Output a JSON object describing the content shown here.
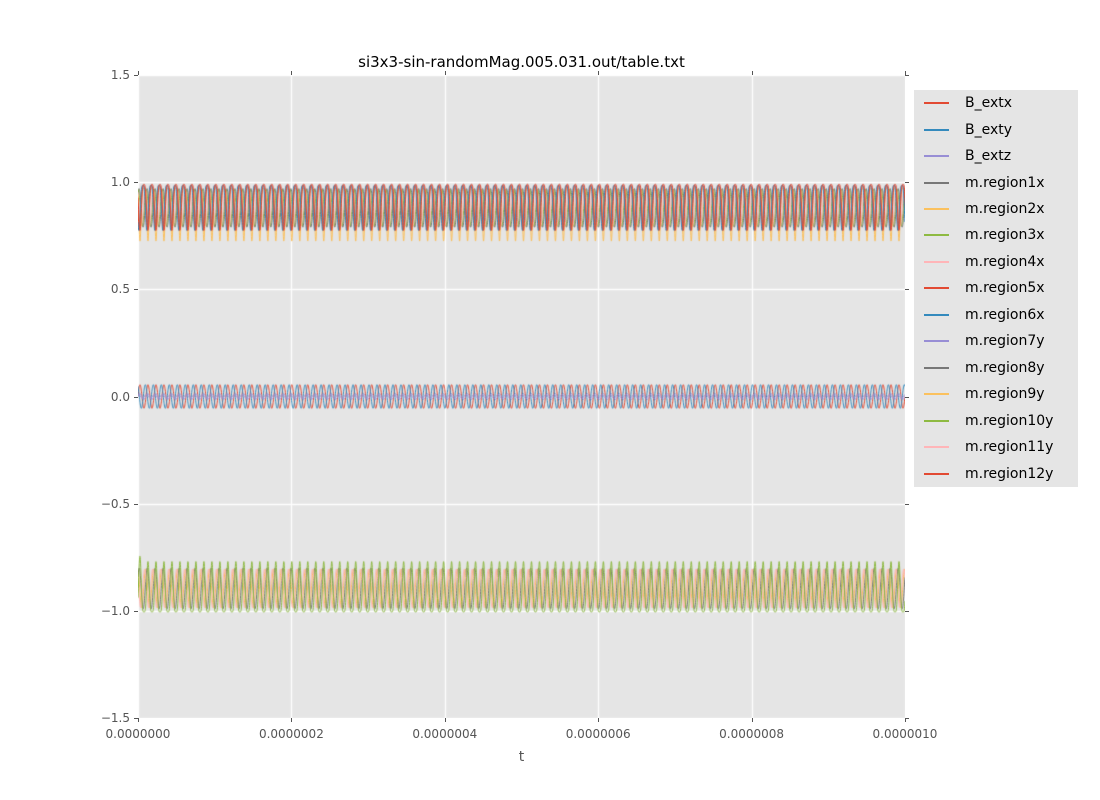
{
  "chart_data": {
    "type": "line",
    "title": "si3x3-sin-randomMag.005.031.out/table.txt",
    "xlabel": "t",
    "ylabel": "",
    "xlim": [
      0.0,
      1e-06
    ],
    "ylim": [
      -1.5,
      1.5
    ],
    "xticklabels": [
      "0.0000000",
      "0.0000002",
      "0.0000004",
      "0.0000006",
      "0.0000008",
      "0.0000010"
    ],
    "yticklabels": [
      "1.5",
      "1.0",
      "0.5",
      "0.0",
      "−0.5",
      "−1.0",
      "−1.5"
    ],
    "grid": true,
    "grid_color": "#ffffff",
    "background": "#e5e5e5",
    "tick_color": "#555555",
    "legend_position": "right",
    "oscillation_cycles_across_domain": 96,
    "bands_note": "Three dense high-frequency oscillation bands: magnetization x-components around +0.88, external field components around 0.0, magnetization y-components around -0.89",
    "series": [
      {
        "name": "B_extx",
        "color": "#E24A33",
        "band": "middle",
        "shape": "sine",
        "center": 0.0,
        "amp": 0.055,
        "phase": 0.0,
        "z": 9
      },
      {
        "name": "B_exty",
        "color": "#348ABD",
        "band": "middle",
        "shape": "sine",
        "center": 0.0,
        "amp": 0.055,
        "phase": 2.1,
        "z": 10
      },
      {
        "name": "B_extz",
        "color": "#988ED5",
        "band": "middle",
        "shape": "sine",
        "center": 0.0,
        "amp": 0.013,
        "phase": 0.0,
        "z": 11
      },
      {
        "name": "m.region1x",
        "color": "#777777",
        "band": "upper",
        "shape": "sine",
        "center": 0.88,
        "amp": 0.09,
        "phase": 0.7,
        "z": 1
      },
      {
        "name": "m.region2x",
        "color": "#FBC15E",
        "band": "upper",
        "shape": "spike_down",
        "top": 0.97,
        "depth": 0.245,
        "power": 3.0,
        "phase": 0.0,
        "z": 4
      },
      {
        "name": "m.region3x",
        "color": "#8EBA42",
        "band": "upper",
        "shape": "sine",
        "center": 0.88,
        "amp": 0.085,
        "phase": 1.4,
        "z": 2
      },
      {
        "name": "m.region4x",
        "color": "#FFB5B8",
        "band": "upper",
        "shape": "sine",
        "center": 0.88,
        "amp": 0.085,
        "phase": 2.1,
        "z": 3
      },
      {
        "name": "m.region5x",
        "color": "#E24A33",
        "band": "upper",
        "shape": "spike_down",
        "top": 0.99,
        "depth": 0.215,
        "power": 1.8,
        "phase": 0.0,
        "z": 15
      },
      {
        "name": "m.region6x",
        "color": "#348ABD",
        "band": "upper",
        "shape": "spike_down",
        "top": 0.985,
        "depth": 0.21,
        "power": 1.8,
        "phase": 0.9,
        "z": 14
      },
      {
        "name": "m.region7y",
        "color": "#988ED5",
        "band": "middle",
        "shape": "sine",
        "center": 0.0,
        "amp": 0.01,
        "phase": 1.2,
        "z": 12
      },
      {
        "name": "m.region8y",
        "color": "#777777",
        "band": "lower",
        "shape": "sine",
        "center": -0.895,
        "amp": 0.095,
        "phase": 0.6,
        "z": 6
      },
      {
        "name": "m.region9y",
        "color": "#FBC15E",
        "band": "lower",
        "shape": "sine",
        "center": -0.895,
        "amp": 0.09,
        "phase": 1.8,
        "z": 5
      },
      {
        "name": "m.region10y",
        "color": "#8EBA42",
        "band": "lower",
        "shape": "spike_up",
        "base": -1.005,
        "height": 0.235,
        "power": 2.2,
        "phase": 0.0,
        "initial_extra": 0.07,
        "z": 8
      },
      {
        "name": "m.region11y",
        "color": "#FFB5B8",
        "band": "lower",
        "shape": "sine",
        "center": -0.895,
        "amp": 0.09,
        "phase": 2.6,
        "z": 7
      },
      {
        "name": "m.region12y",
        "color": "#E24A33",
        "band": "upper",
        "shape": "spike_down",
        "top": 0.985,
        "depth": 0.21,
        "power": 1.8,
        "phase": 0.45,
        "z": 13
      }
    ]
  }
}
